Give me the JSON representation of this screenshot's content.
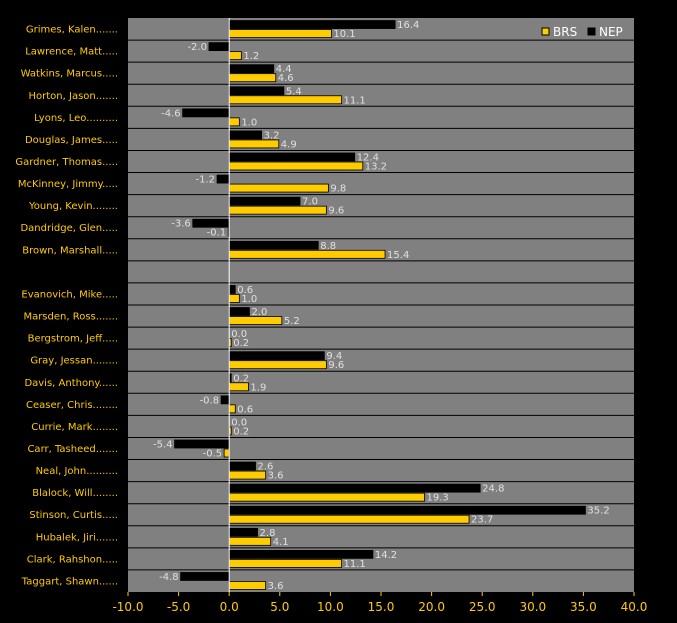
{
  "chart_data": {
    "type": "bar",
    "orientation": "horizontal",
    "categories": [
      "Grimes, Kalen.......",
      "Lawrence, Matt.....",
      "Watkins, Marcus.....",
      "Horton, Jason.......",
      "Lyons, Leo..........",
      "Douglas, James.....",
      "Gardner, Thomas.....",
      "McKinney, Jimmy.....",
      "Young, Kevin........",
      "Dandridge, Glen.....",
      "Brown, Marshall.....",
      "",
      "Evanovich, Mike.....",
      "Marsden, Ross.......",
      "Bergstrom, Jeff.....",
      "Gray, Jessan........",
      "Davis, Anthony......",
      "Ceaser, Chris........",
      "Currie, Mark........",
      "Carr, Tasheed.......",
      "Neal, John..........",
      "Blalock, Will........",
      "Stinson, Curtis.....",
      "Hubalek, Jiri.......",
      "Clark, Rahshon.....",
      "Taggart, Shawn......"
    ],
    "series": [
      {
        "name": "NEP",
        "color": "#000000",
        "values": [
          16.4,
          -2.0,
          4.4,
          5.4,
          -4.6,
          3.2,
          12.4,
          -1.2,
          7.0,
          -3.6,
          8.8,
          null,
          0.6,
          2.0,
          0.0,
          9.4,
          0.2,
          -0.8,
          0.0,
          -5.4,
          2.6,
          24.8,
          35.2,
          2.8,
          14.2,
          -4.8
        ],
        "labels": [
          "16.4",
          "-2.0",
          "4.4",
          "5.4",
          "-4.6",
          "3.2",
          "12.4",
          "-1.2",
          "7.0",
          "-3.6",
          "8.8",
          "",
          "0.6",
          "2.0",
          "0.0",
          "9.4",
          "0.2",
          "-0.8",
          "0.0",
          "-5.4",
          "2.6",
          "24.8",
          "35.2",
          "2.8",
          "14.2",
          "-4.8"
        ]
      },
      {
        "name": "BRS",
        "color": "#ffcc00",
        "values": [
          10.1,
          1.2,
          4.6,
          11.1,
          1.0,
          4.9,
          13.2,
          9.8,
          9.6,
          -0.1,
          15.4,
          null,
          1.0,
          5.2,
          0.2,
          9.6,
          1.9,
          0.6,
          0.2,
          -0.5,
          3.6,
          19.3,
          23.7,
          4.1,
          11.1,
          3.6
        ],
        "labels": [
          "10.1",
          "1.2",
          "4.6",
          "11.1",
          "1.0",
          "4.9",
          "13.2",
          "9.8",
          "9.6",
          "-0.1",
          "15.4",
          "",
          "1.0",
          "5.2",
          "0.2",
          "9.6",
          "1.9",
          "0.6",
          "0.2",
          "-0.5",
          "3.6",
          "19.3",
          "23.7",
          "4.1",
          "11.1",
          "3.6"
        ]
      }
    ],
    "legend_order": [
      "BRS",
      "NEP"
    ],
    "legend_position": "top-right",
    "xlim": [
      -10,
      40
    ],
    "xticks": [
      -10,
      -5,
      0,
      5,
      10,
      15,
      20,
      25,
      30,
      35,
      40
    ],
    "xtick_labels": [
      "-10.0",
      "-5.0",
      "0.0",
      "5.0",
      "10.0",
      "15.0",
      "20.0",
      "25.0",
      "30.0",
      "35.0",
      "40.0"
    ],
    "grid": true,
    "plot_background": "#808080",
    "title": "",
    "xlabel": "",
    "ylabel": ""
  }
}
